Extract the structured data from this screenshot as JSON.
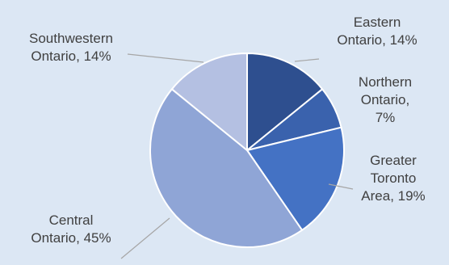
{
  "chart_data": {
    "type": "pie",
    "title": "",
    "start_angle_deg": 0,
    "direction": "clockwise",
    "slices": [
      {
        "label": "Eastern Ontario",
        "display": "Eastern Ontario, 14%",
        "value": 14,
        "color": "#2e4f8f"
      },
      {
        "label": "Northern Ontario",
        "display": "Northern Ontario, 7%",
        "value": 7,
        "color": "#3a62ad"
      },
      {
        "label": "Greater Toronto Area",
        "display": "Greater Toronto Area, 19%",
        "value": 19,
        "color": "#4472c4"
      },
      {
        "label": "Central Ontario",
        "display": "Central Ontario, 45%",
        "value": 45,
        "color": "#8fa5d6"
      },
      {
        "label": "Southwestern Ontario",
        "display": "Southwestern Ontario, 14%",
        "value": 14,
        "color": "#b4c0e2"
      }
    ],
    "label_lines": [
      [
        "Eastern",
        "Ontario, 14%"
      ],
      [
        "Northern",
        "Ontario,",
        "7%"
      ],
      [
        "Greater",
        "Toronto",
        "Area, 19%"
      ],
      [
        "Central",
        "Ontario, 45%"
      ],
      [
        "Southwestern",
        "Ontario, 14%"
      ]
    ],
    "colors": {
      "background": "#dce7f4",
      "label_text": "#404040",
      "leader_line": "#a6a6a6",
      "slice_border": "#ffffff"
    }
  }
}
